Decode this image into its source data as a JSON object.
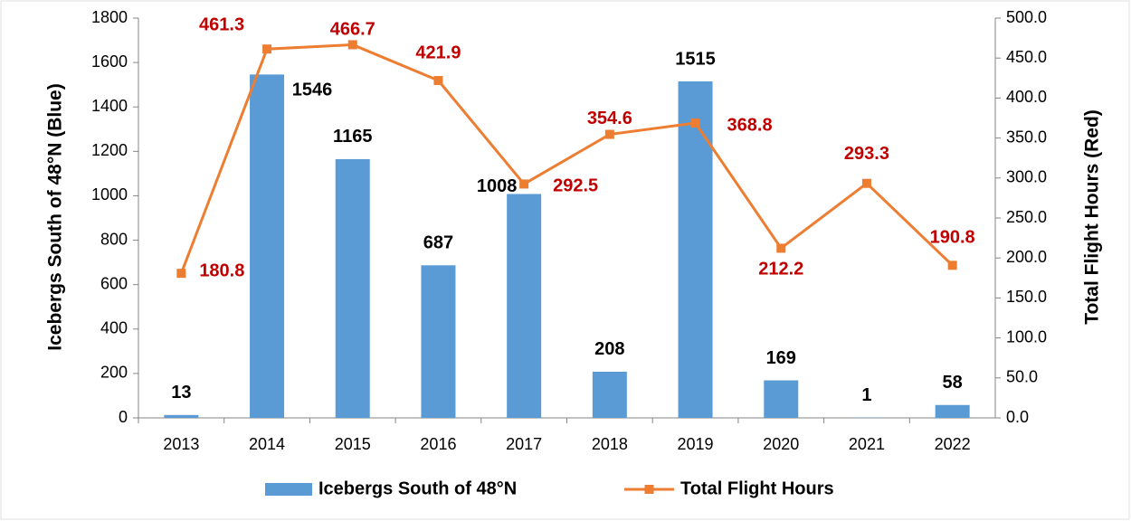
{
  "chart_data": {
    "type": "bar-line",
    "categories": [
      "2013",
      "2014",
      "2015",
      "2016",
      "2017",
      "2018",
      "2019",
      "2020",
      "2021",
      "2022"
    ],
    "series": [
      {
        "name": "Icebergs South of 48°N",
        "type": "bar",
        "color": "#5b9bd5",
        "values": [
          13,
          1546,
          1165,
          687,
          1008,
          208,
          1515,
          169,
          1,
          58
        ]
      },
      {
        "name": "Total Flight Hours",
        "type": "line",
        "axis": "y2",
        "color": "#ed7d31",
        "values": [
          180.8,
          461.3,
          466.7,
          421.9,
          292.5,
          354.6,
          368.8,
          212.2,
          293.3,
          190.8
        ]
      }
    ],
    "ylabel": "Icebergs South of 48°N (Blue)",
    "y2label": "Total Flight Hours (Red)",
    "ylim": [
      0,
      1800
    ],
    "yticks": [
      0,
      200,
      400,
      600,
      800,
      1000,
      1200,
      1400,
      1600,
      1800
    ],
    "y2lim": [
      0,
      500
    ],
    "y2ticks": [
      {
        "value": 0,
        "label": "0.0"
      },
      {
        "value": 50,
        "label": "50.0"
      },
      {
        "value": 100,
        "label": "100.0"
      },
      {
        "value": 150,
        "label": "150.0"
      },
      {
        "value": 200,
        "label": "200.0"
      },
      {
        "value": 250,
        "label": "250.0"
      },
      {
        "value": 300,
        "label": "300.0"
      },
      {
        "value": 350,
        "label": "350.0"
      },
      {
        "value": 400,
        "label": "400.0"
      },
      {
        "value": 450,
        "label": "450.0"
      },
      {
        "value": 500,
        "label": "500.0"
      }
    ],
    "legend": "bottom"
  }
}
